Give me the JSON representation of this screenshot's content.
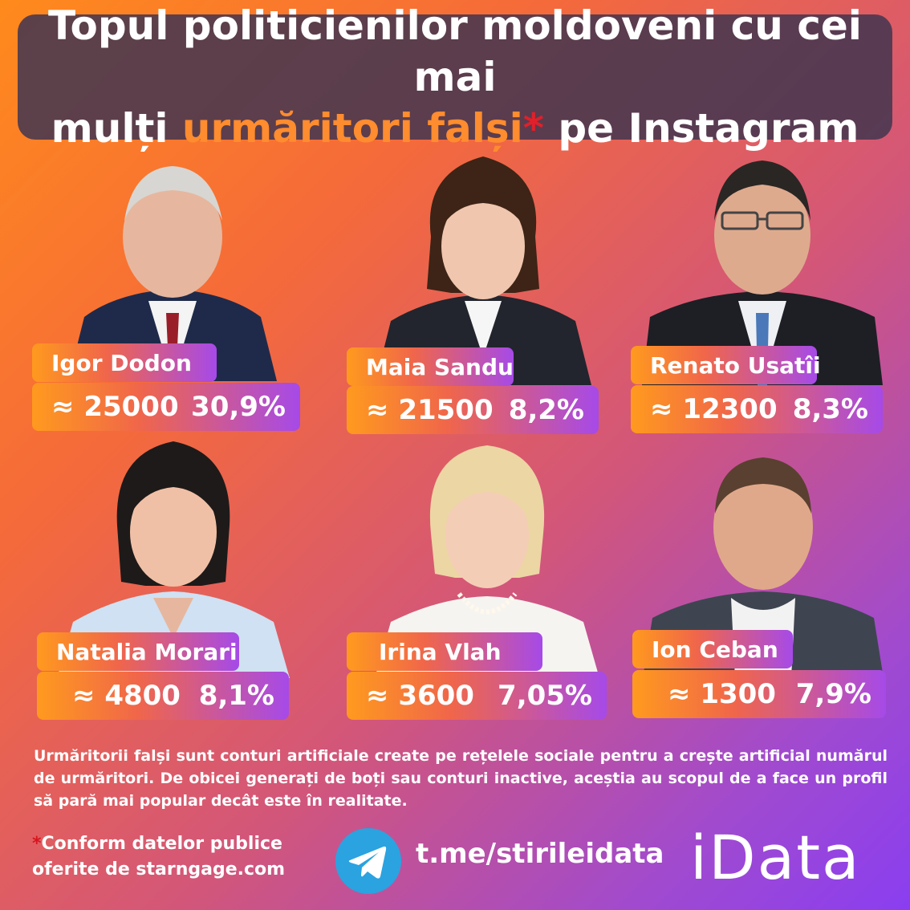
{
  "header": {
    "line1": "Topul politicienilor moldoveni cu cei mai",
    "line2_pre": "mulți ",
    "line2_highlight": "urmăritori falși",
    "line2_star": "*",
    "line2_post": " pe Instagram"
  },
  "politicians": [
    {
      "name": "Igor Dodon",
      "followers": "≈ 25000",
      "percent": "30,9%"
    },
    {
      "name": "Maia Sandu",
      "followers": "≈ 21500",
      "percent": "8,2%"
    },
    {
      "name": "Renato Usatîi",
      "followers": "≈ 12300",
      "percent": "8,3%"
    },
    {
      "name": "Natalia Morari",
      "followers": "≈ 4800",
      "percent": "8,1%"
    },
    {
      "name": "Irina Vlah",
      "followers": "≈ 3600",
      "percent": "7,05%"
    },
    {
      "name": "Ion Ceban",
      "followers": "≈ 1300",
      "percent": "7,9%"
    }
  ],
  "description": "Urmăritorii falși sunt conturi artificiale create pe rețelele sociale pentru a crește artificial numărul de urmăritori. De obicei generați de boți sau conturi inactive, aceștia au scopul de a face un profil să pară mai popular decât este în realitate.",
  "source": {
    "star": "*",
    "line1": "Conform datelor publice",
    "line2": "oferite de starngage.com"
  },
  "telegram": {
    "link": "t.me/stirileidata",
    "icon": "telegram-icon"
  },
  "brand": "iData",
  "colors": {
    "accent": "#ff8c2e",
    "star": "#e0202a",
    "title_bg": "#46374f"
  }
}
